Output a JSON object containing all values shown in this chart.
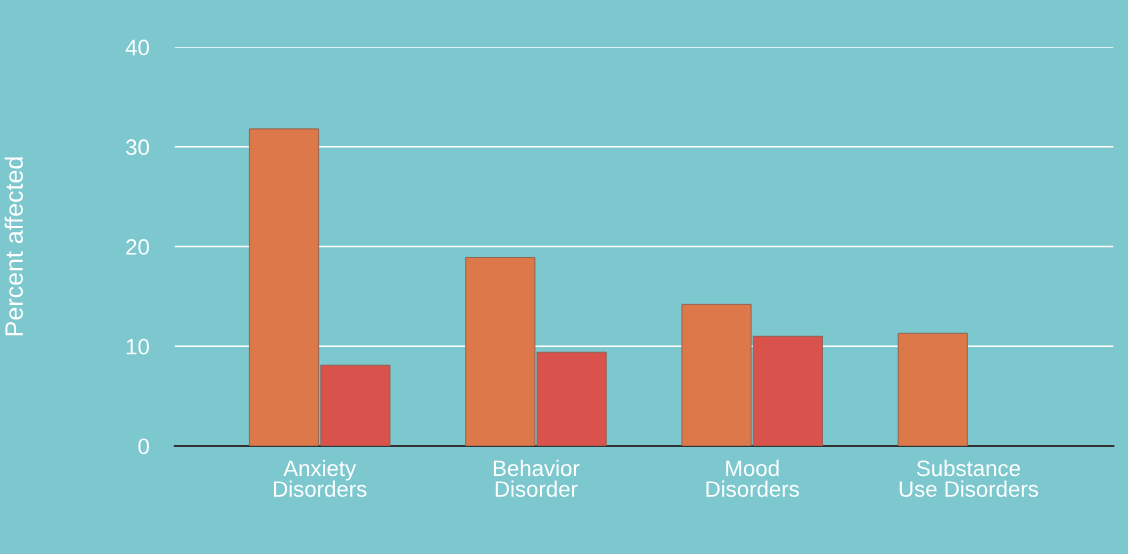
{
  "chart_data": {
    "type": "bar",
    "ylabel": "Percent affected",
    "categories": [
      "Anxiety\nDisorders",
      "Behavior\nDisorder",
      "Mood\nDisorders",
      "Substance\nUse Disorders"
    ],
    "series": [
      {
        "color": "#dc7849",
        "values": [
          31.8,
          18.9,
          14.2,
          11.3
        ]
      },
      {
        "color": "#d9534c",
        "values": [
          8.1,
          9.4,
          11.0,
          null
        ]
      }
    ],
    "ylim": [
      0,
      40
    ],
    "yticks": [
      0,
      10,
      20,
      30,
      40
    ],
    "grid": "y"
  }
}
